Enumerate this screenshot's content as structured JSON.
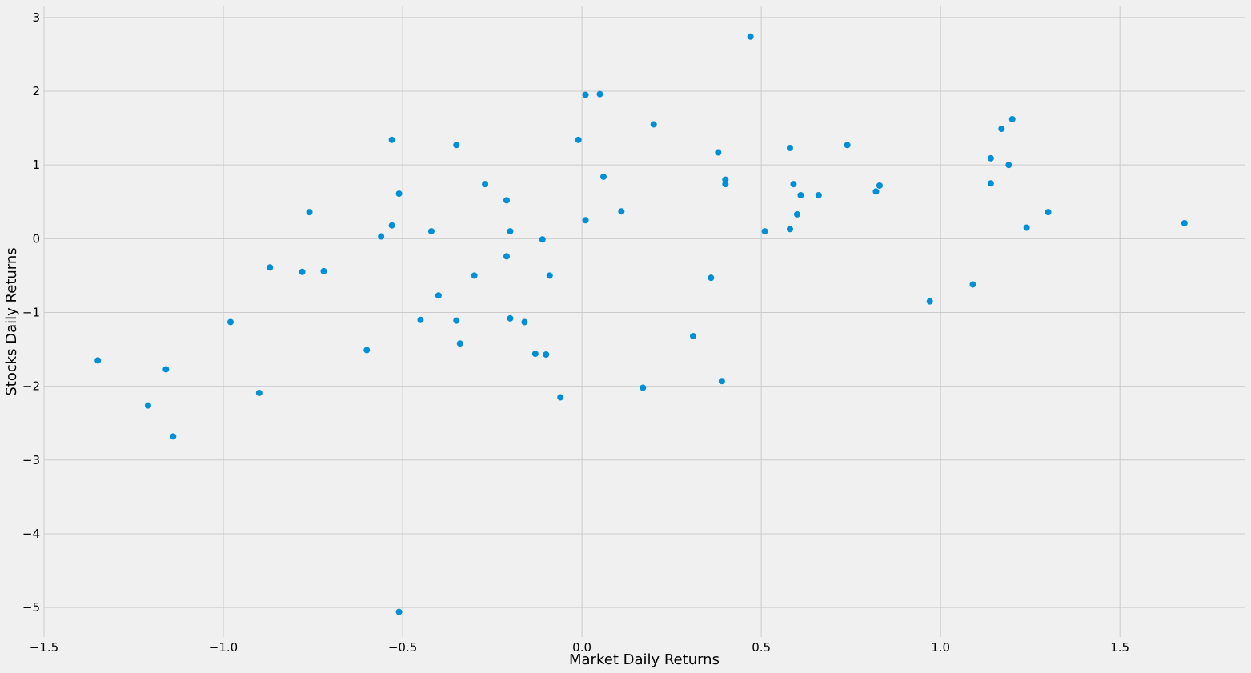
{
  "chart_data": {
    "type": "scatter",
    "title": "",
    "xlabel": "Market Daily Returns",
    "ylabel": "Stocks Daily Returns",
    "xlim": [
      -1.5,
      1.85
    ],
    "ylim": [
      -5.4,
      3.15
    ],
    "xticks": [
      -1.5,
      -1.0,
      -0.5,
      0.0,
      0.5,
      1.0,
      1.5
    ],
    "xtick_labels": [
      "−1.5",
      "−1.0",
      "−0.5",
      "0.0",
      "0.5",
      "1.0",
      "1.5"
    ],
    "yticks": [
      -5,
      -4,
      -3,
      -2,
      -1,
      0,
      1,
      2,
      3
    ],
    "ytick_labels": [
      "−5",
      "−4",
      "−3",
      "−2",
      "−1",
      "0",
      "1",
      "2",
      "3"
    ],
    "grid": true,
    "colors": {
      "point": "#008fd5",
      "grid": "#cbcbcb",
      "background": "#f0f0f0"
    },
    "points": [
      {
        "x": -1.35,
        "y": -1.65
      },
      {
        "x": -1.21,
        "y": -2.26
      },
      {
        "x": -1.16,
        "y": -1.77
      },
      {
        "x": -1.14,
        "y": -2.68
      },
      {
        "x": -0.98,
        "y": -1.13
      },
      {
        "x": -0.9,
        "y": -2.09
      },
      {
        "x": -0.87,
        "y": -0.39
      },
      {
        "x": -0.78,
        "y": -0.45
      },
      {
        "x": -0.76,
        "y": 0.36
      },
      {
        "x": -0.72,
        "y": -0.44
      },
      {
        "x": -0.6,
        "y": -1.51
      },
      {
        "x": -0.56,
        "y": 0.03
      },
      {
        "x": -0.53,
        "y": 1.34
      },
      {
        "x": -0.53,
        "y": 0.18
      },
      {
        "x": -0.51,
        "y": 0.61
      },
      {
        "x": -0.51,
        "y": -5.06
      },
      {
        "x": -0.45,
        "y": -1.1
      },
      {
        "x": -0.42,
        "y": 0.1
      },
      {
        "x": -0.4,
        "y": -0.77
      },
      {
        "x": -0.35,
        "y": -1.11
      },
      {
        "x": -0.35,
        "y": 1.27
      },
      {
        "x": -0.34,
        "y": -1.42
      },
      {
        "x": -0.3,
        "y": -0.5
      },
      {
        "x": -0.27,
        "y": 0.74
      },
      {
        "x": -0.21,
        "y": 0.52
      },
      {
        "x": -0.21,
        "y": -0.24
      },
      {
        "x": -0.2,
        "y": 0.1
      },
      {
        "x": -0.2,
        "y": -1.08
      },
      {
        "x": -0.16,
        "y": -1.13
      },
      {
        "x": -0.13,
        "y": -1.56
      },
      {
        "x": -0.11,
        "y": -0.01
      },
      {
        "x": -0.1,
        "y": -1.57
      },
      {
        "x": -0.09,
        "y": -0.5
      },
      {
        "x": -0.06,
        "y": -2.15
      },
      {
        "x": -0.01,
        "y": 1.34
      },
      {
        "x": 0.01,
        "y": 1.95
      },
      {
        "x": 0.01,
        "y": 0.25
      },
      {
        "x": 0.05,
        "y": 1.96
      },
      {
        "x": 0.06,
        "y": 0.84
      },
      {
        "x": 0.11,
        "y": 0.37
      },
      {
        "x": 0.17,
        "y": -2.02
      },
      {
        "x": 0.2,
        "y": 1.55
      },
      {
        "x": 0.31,
        "y": -1.32
      },
      {
        "x": 0.36,
        "y": -0.53
      },
      {
        "x": 0.38,
        "y": 1.17
      },
      {
        "x": 0.39,
        "y": -1.93
      },
      {
        "x": 0.4,
        "y": 0.8
      },
      {
        "x": 0.4,
        "y": 0.74
      },
      {
        "x": 0.47,
        "y": 2.74
      },
      {
        "x": 0.51,
        "y": 0.1
      },
      {
        "x": 0.58,
        "y": 1.23
      },
      {
        "x": 0.58,
        "y": 0.13
      },
      {
        "x": 0.59,
        "y": 0.74
      },
      {
        "x": 0.6,
        "y": 0.33
      },
      {
        "x": 0.61,
        "y": 0.59
      },
      {
        "x": 0.66,
        "y": 0.59
      },
      {
        "x": 0.74,
        "y": 1.27
      },
      {
        "x": 0.82,
        "y": 0.64
      },
      {
        "x": 0.83,
        "y": 0.72
      },
      {
        "x": 0.97,
        "y": -0.85
      },
      {
        "x": 1.09,
        "y": -0.62
      },
      {
        "x": 1.14,
        "y": 0.75
      },
      {
        "x": 1.14,
        "y": 1.09
      },
      {
        "x": 1.17,
        "y": 1.49
      },
      {
        "x": 1.19,
        "y": 1.0
      },
      {
        "x": 1.2,
        "y": 1.62
      },
      {
        "x": 1.24,
        "y": 0.15
      },
      {
        "x": 1.3,
        "y": 0.36
      },
      {
        "x": 1.68,
        "y": 0.21
      }
    ]
  }
}
